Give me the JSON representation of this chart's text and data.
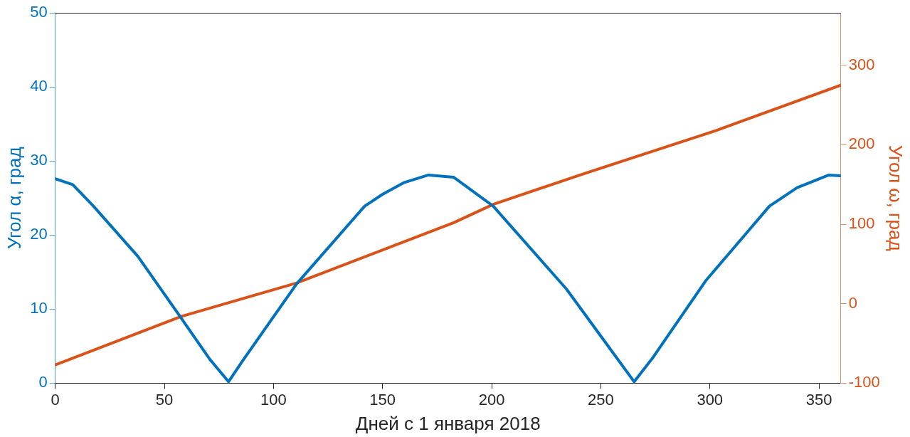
{
  "chart_data": {
    "type": "line",
    "xlabel": "Дней с 1 января 2018",
    "ylabel": "Угол α, град",
    "y2label": "Угол ω, град",
    "xlim": [
      0,
      360
    ],
    "xticks": [
      0,
      50,
      100,
      150,
      200,
      250,
      300,
      350
    ],
    "ylim": [
      0,
      50
    ],
    "yticks": [
      0,
      10,
      20,
      30,
      40,
      50
    ],
    "y2lim": [
      -100,
      366
    ],
    "y2ticks": [
      -100,
      0,
      100,
      200,
      300
    ],
    "series": [
      {
        "color": "#0072bd",
        "axis": "y",
        "x": [
          0,
          8,
          17.5,
          37.9,
          57.7,
          70.9,
          79.4,
          86.5,
          110.6,
          141.8,
          150,
          160,
          171,
          182.6,
          200.7,
          234.3,
          257.1,
          265.3,
          274,
          298,
          327.3,
          340,
          354.5,
          360
        ],
        "values": [
          27.6,
          26.8,
          23.9,
          17.1,
          8.8,
          3.2,
          0.2,
          3.3,
          13.4,
          23.9,
          25.5,
          27.1,
          28.1,
          27.8,
          23.9,
          12.7,
          3.5,
          0.2,
          3.5,
          13.8,
          23.9,
          26.4,
          28.1,
          28.0
        ]
      },
      {
        "color": "#d95319",
        "axis": "y2",
        "x": [
          0,
          57.7,
          110.6,
          182.6,
          200.7,
          242.7,
          302.9,
          360
        ],
        "values": [
          -77,
          -16,
          26,
          102,
          125,
          164,
          218,
          275
        ]
      }
    ]
  }
}
